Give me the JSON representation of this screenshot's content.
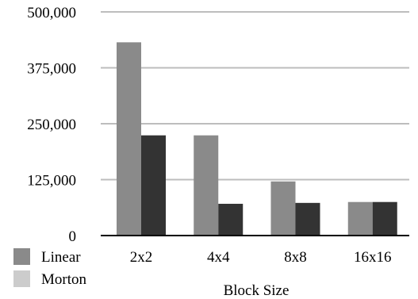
{
  "chart_data": {
    "type": "bar",
    "title": "",
    "xlabel": "Block Size",
    "ylabel": "",
    "categories": [
      "2x2",
      "4x4",
      "8x8",
      "16x16"
    ],
    "series": [
      {
        "name": "Linear",
        "values": [
          432000,
          224000,
          121000,
          75000
        ],
        "color": "#8a8a8a"
      },
      {
        "name": "Morton",
        "values": [
          224000,
          71000,
          73000,
          75000
        ],
        "color": "#333333"
      }
    ],
    "legend_swatch_colors": [
      "#8a8a8a",
      "#cccccc"
    ],
    "ylim": [
      0,
      500000
    ],
    "yticks": [
      {
        "value": 0,
        "label": "0"
      },
      {
        "value": 125000,
        "label": "125,000"
      },
      {
        "value": 250000,
        "label": "250,000"
      },
      {
        "value": 375000,
        "label": "375,000"
      },
      {
        "value": 500000,
        "label": "500,000"
      }
    ],
    "grid": true,
    "legend_position": "bottom-left",
    "gridline_color": "#bdbdbd",
    "axis_color": "#000000"
  }
}
